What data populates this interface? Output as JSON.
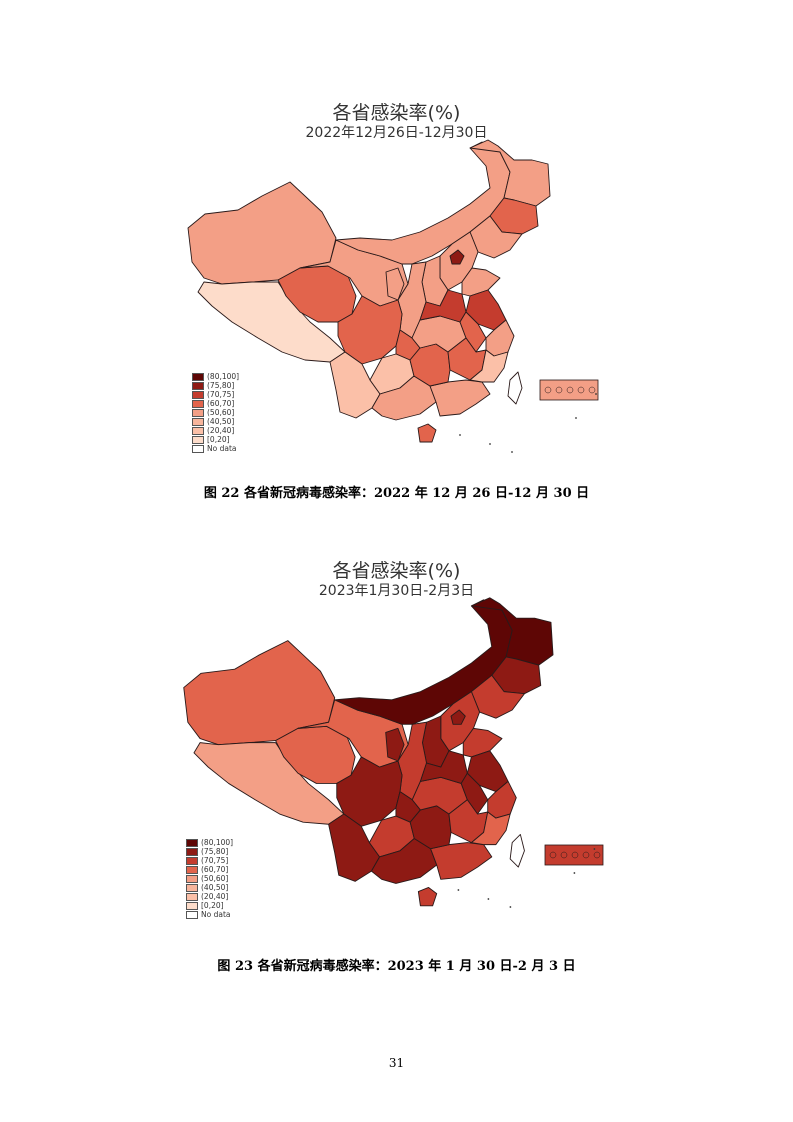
{
  "figures": [
    {
      "title": "各省感染率(%)",
      "subtitle": "2022年12月26日-12月30日",
      "caption": "图 22 各省新冠病毒感染率：2022 年 12 月 26 日-12 月 30 日",
      "region_colors": {
        "xinjiang": "#f39f86",
        "tibet": "#fddcca",
        "qinghai": "#e2644c",
        "gansu": "#f39f86",
        "innermongolia": "#f39f86",
        "heilongjiang": "#f39f86",
        "jilin": "#e2644c",
        "liaoning": "#f39f86",
        "hebei": "#f39f86",
        "beijing": "#8e1a14",
        "shanxi": "#f39f86",
        "shaanxi": "#f39f86",
        "ningxia": "#f39f86",
        "sichuan": "#e2644c",
        "chongqing": "#e2644c",
        "yunnan": "#fbc0a8",
        "guizhou": "#fbc0a8",
        "guangxi": "#f39f86",
        "guangdong": "#f39f86",
        "hunan": "#e2644c",
        "hubei": "#f39f86",
        "henan": "#c43c2e",
        "shandong": "#f39f86",
        "jiangsu": "#c43c2e",
        "anhui": "#e2644c",
        "zhejiang": "#f39f86",
        "jiangxi": "#e2644c",
        "fujian": "#fbc0a8",
        "hainan": "#e2644c",
        "taiwan": "#ffffff",
        "inset": "#f39f86"
      }
    },
    {
      "title": "各省感染率(%)",
      "subtitle": "2023年1月30日-2月3日",
      "caption": "图 23 各省新冠病毒感染率：2023 年 1 月 30 日-2 月 3 日",
      "region_colors": {
        "xinjiang": "#e2644c",
        "tibet": "#f39f86",
        "qinghai": "#e2644c",
        "gansu": "#e2644c",
        "innermongolia": "#5e0605",
        "heilongjiang": "#5e0605",
        "jilin": "#8e1a14",
        "liaoning": "#c43c2e",
        "hebei": "#c43c2e",
        "beijing": "#8e1a14",
        "shanxi": "#8e1a14",
        "shaanxi": "#c43c2e",
        "ningxia": "#8e1a14",
        "sichuan": "#8e1a14",
        "chongqing": "#8e1a14",
        "yunnan": "#8e1a14",
        "guizhou": "#c43c2e",
        "guangxi": "#8e1a14",
        "guangdong": "#c43c2e",
        "hunan": "#8e1a14",
        "hubei": "#c43c2e",
        "henan": "#8e1a14",
        "shandong": "#c43c2e",
        "jiangsu": "#8e1a14",
        "anhui": "#8e1a14",
        "zhejiang": "#c43c2e",
        "jiangxi": "#c43c2e",
        "fujian": "#e2644c",
        "hainan": "#c43c2e",
        "taiwan": "#ffffff",
        "inset": "#c43c2e"
      }
    }
  ],
  "legend": [
    {
      "label": "(80,100]",
      "color": "#5e0605"
    },
    {
      "label": "(75,80]",
      "color": "#8e1a14"
    },
    {
      "label": "(70,75]",
      "color": "#c43c2e"
    },
    {
      "label": "(60,70]",
      "color": "#e2644c"
    },
    {
      "label": "(50,60]",
      "color": "#f39f86"
    },
    {
      "label": "(40,50]",
      "color": "#f7b59c"
    },
    {
      "label": "(20,40]",
      "color": "#fbc0a8"
    },
    {
      "label": "[0,20]",
      "color": "#fddcca"
    },
    {
      "label": "No data",
      "color": "#ffffff"
    }
  ],
  "page_number": "31"
}
